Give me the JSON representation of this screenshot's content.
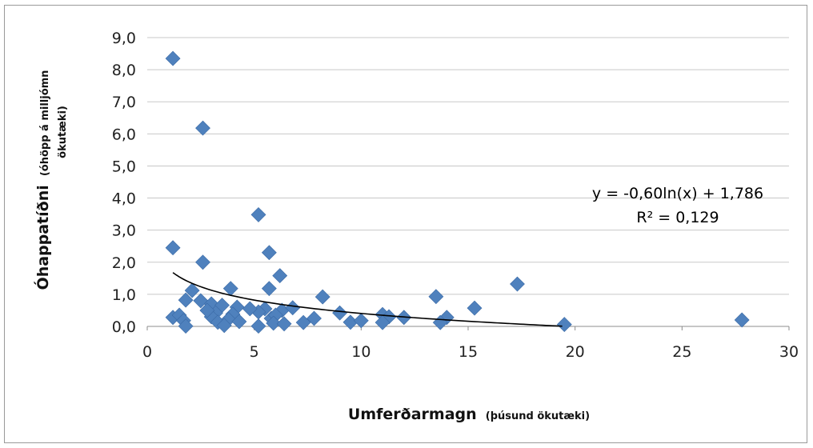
{
  "chart_data": {
    "type": "scatter",
    "title": "",
    "xlabel": "Umferðarmagn",
    "xlabel_sub": "(þúsund ökutæki)",
    "ylabel": "Óhappatíðni",
    "ylabel_sub_line1": "(óhöpp á milljómn",
    "ylabel_sub_line2": "ökutæki)",
    "xlim": [
      0,
      30
    ],
    "ylim": [
      0,
      9
    ],
    "x_ticks": [
      0,
      5,
      10,
      15,
      20,
      25,
      30
    ],
    "x_tick_labels": [
      "0",
      "5",
      "10",
      "15",
      "20",
      "25",
      "30"
    ],
    "y_ticks": [
      0,
      1,
      2,
      3,
      4,
      5,
      6,
      7,
      8,
      9
    ],
    "y_tick_labels": [
      "0,0",
      "1,0",
      "2,0",
      "3,0",
      "4,0",
      "5,0",
      "6,0",
      "7,0",
      "8,0",
      "9,0"
    ],
    "grid": {
      "horizontal": true,
      "vertical": false
    },
    "marker": {
      "shape": "diamond",
      "color": "#4f81bd"
    },
    "trendline": {
      "type": "logarithmic",
      "a": -0.6,
      "b": 1.786,
      "x_range": [
        1.2,
        19.4
      ],
      "color": "#000000",
      "equation_label": "y = -0,60ln(x) + 1,786",
      "r2_label": "R² = 0,129"
    },
    "points": [
      [
        1.2,
        8.35
      ],
      [
        2.6,
        6.18
      ],
      [
        1.2,
        2.45
      ],
      [
        2.6,
        2.0
      ],
      [
        5.2,
        3.48
      ],
      [
        5.7,
        2.3
      ],
      [
        6.2,
        1.58
      ],
      [
        17.3,
        1.32
      ],
      [
        3.9,
        1.18
      ],
      [
        2.1,
        1.12
      ],
      [
        5.7,
        1.18
      ],
      [
        8.2,
        0.92
      ],
      [
        13.5,
        0.93
      ],
      [
        15.3,
        0.57
      ],
      [
        1.8,
        0.82
      ],
      [
        2.5,
        0.8
      ],
      [
        3.0,
        0.7
      ],
      [
        3.5,
        0.66
      ],
      [
        4.2,
        0.6
      ],
      [
        5.5,
        0.55
      ],
      [
        6.3,
        0.5
      ],
      [
        6.8,
        0.58
      ],
      [
        5.2,
        0.45
      ],
      [
        3.2,
        0.42
      ],
      [
        4.0,
        0.38
      ],
      [
        9.0,
        0.42
      ],
      [
        11.0,
        0.37
      ],
      [
        11.3,
        0.3
      ],
      [
        12.0,
        0.28
      ],
      [
        14.0,
        0.28
      ],
      [
        1.2,
        0.28
      ],
      [
        1.5,
        0.35
      ],
      [
        3.0,
        0.3
      ],
      [
        5.8,
        0.25
      ],
      [
        7.8,
        0.25
      ],
      [
        6.0,
        0.35
      ],
      [
        3.8,
        0.22
      ],
      [
        1.7,
        0.18
      ],
      [
        3.3,
        0.13
      ],
      [
        4.3,
        0.15
      ],
      [
        5.9,
        0.1
      ],
      [
        7.3,
        0.12
      ],
      [
        9.5,
        0.13
      ],
      [
        10.0,
        0.18
      ],
      [
        11.0,
        0.12
      ],
      [
        13.7,
        0.12
      ],
      [
        19.5,
        0.06
      ],
      [
        27.8,
        0.2
      ],
      [
        1.8,
        0.01
      ],
      [
        3.6,
        0.03
      ],
      [
        5.2,
        0.01
      ],
      [
        6.4,
        0.08
      ],
      [
        4.8,
        0.55
      ],
      [
        2.8,
        0.5
      ]
    ]
  }
}
